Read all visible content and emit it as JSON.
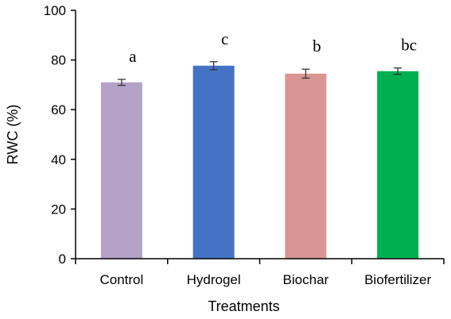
{
  "chart_data": {
    "type": "bar",
    "title": "",
    "xlabel": "Treatments",
    "ylabel": "RWC (%)",
    "ylim": [
      0,
      100
    ],
    "yticks": [
      0,
      20,
      40,
      60,
      80,
      100
    ],
    "grid": false,
    "legend": "none",
    "categories": [
      "Control",
      "Hydrogel",
      "Biochar",
      "Biofertilizer"
    ],
    "values": [
      71,
      77.7,
      74.5,
      75.5
    ],
    "error": [
      1.2,
      1.6,
      1.8,
      1.3
    ],
    "significance_letters": [
      "a",
      "c",
      "b",
      "bc"
    ],
    "colors": [
      "#b3a1c8",
      "#4472c4",
      "#d99594",
      "#00b050"
    ]
  }
}
